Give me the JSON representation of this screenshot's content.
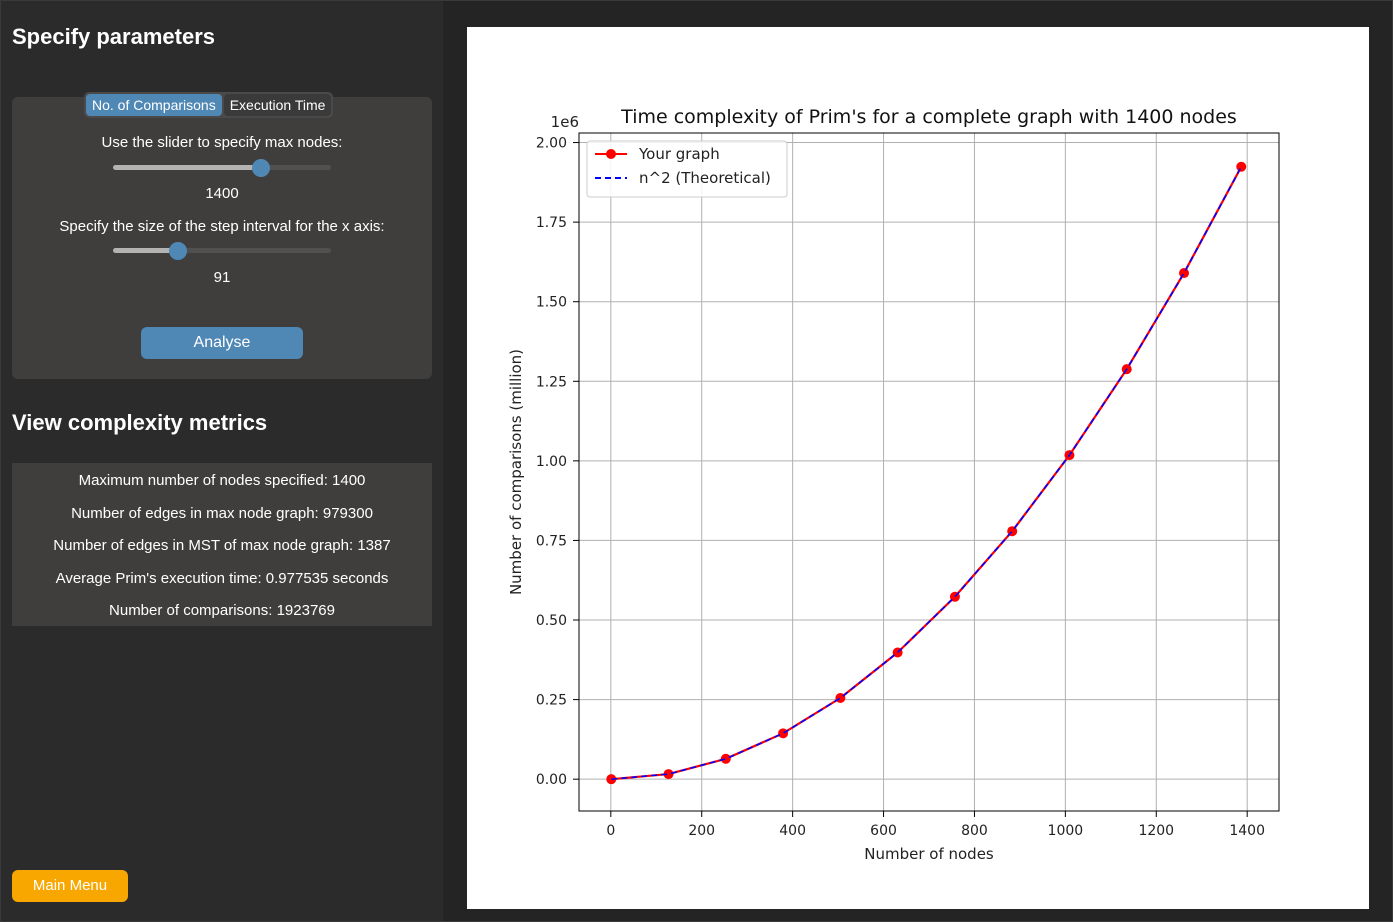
{
  "sidebar": {
    "params_heading": "Specify parameters",
    "tabs": [
      {
        "label": "No. of Comparisons",
        "active": true
      },
      {
        "label": "Execution Time",
        "active": false
      }
    ],
    "max_nodes_label": "Use the slider to specify max nodes:",
    "max_nodes_value": "1400",
    "max_nodes_slider_fraction": 0.68,
    "step_label": "Specify the size of the step interval for the x axis:",
    "step_value": "91",
    "step_slider_fraction": 0.3,
    "analyse_label": "Analyse",
    "metrics_heading": "View complexity metrics",
    "metrics": [
      "Maximum number of nodes specified: 1400",
      "Number of edges in max node graph: 979300",
      "Number of edges in MST of max node graph: 1387",
      "Average Prim's execution time: 0.977535 seconds",
      "Number of comparisons: 1923769"
    ],
    "main_menu_label": "Main Menu"
  },
  "colors": {
    "accent": "#4f87b5",
    "main_menu": "#f8a700",
    "series_measured": "#ff0000",
    "series_theoretical": "#0000ff"
  },
  "chart_data": {
    "type": "line",
    "title": "Time complexity of Prim's for a complete graph with 1400 nodes",
    "xlabel": "Number of nodes",
    "ylabel": "Number of comparisons (million)",
    "y_offset_label": "1e6",
    "xlim": [
      -70,
      1470
    ],
    "ylim": [
      -0.1,
      2.03
    ],
    "x_ticks": [
      0,
      200,
      400,
      600,
      800,
      1000,
      1200,
      1400
    ],
    "y_ticks": [
      0.0,
      0.25,
      0.5,
      0.75,
      1.0,
      1.25,
      1.5,
      1.75,
      2.0
    ],
    "y_tick_labels": [
      "0.00",
      "0.25",
      "0.50",
      "0.75",
      "1.00",
      "1.25",
      "1.50",
      "1.75",
      "2.00"
    ],
    "grid": true,
    "legend_position": "top-left",
    "series": [
      {
        "name": "Your graph",
        "style": "solid-with-markers",
        "x": [
          1,
          127,
          253,
          379,
          505,
          631,
          757,
          883,
          1009,
          1135,
          1261,
          1387
        ],
        "y": [
          0.0,
          0.016,
          0.064,
          0.144,
          0.255,
          0.398,
          0.573,
          0.779,
          1.018,
          1.288,
          1.59,
          1.924
        ]
      },
      {
        "name": "n^2 (Theoretical)",
        "style": "dashed",
        "x": [
          1,
          127,
          253,
          379,
          505,
          631,
          757,
          883,
          1009,
          1135,
          1261,
          1387
        ],
        "y": [
          0.0,
          0.016,
          0.064,
          0.144,
          0.255,
          0.398,
          0.573,
          0.779,
          1.018,
          1.288,
          1.59,
          1.924
        ]
      }
    ]
  }
}
